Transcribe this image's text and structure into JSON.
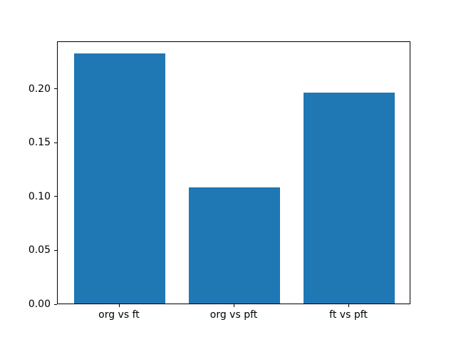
{
  "figure": {
    "background": "#ffffff"
  },
  "chart_data": {
    "type": "bar",
    "title": "",
    "xlabel": "",
    "ylabel": "",
    "categories": [
      "org vs ft",
      "org vs pft",
      "ft vs pft"
    ],
    "values": [
      0.232,
      0.108,
      0.196
    ],
    "bar_color": "#1f77b4",
    "bar_width_frac": 0.8,
    "x_margin_frac": 0.05,
    "ylim": [
      0,
      0.244
    ],
    "yticks": [
      0.0,
      0.05,
      0.1,
      0.15,
      0.2
    ],
    "ytick_decimals": 2,
    "grid": false,
    "legend_position": "none"
  }
}
